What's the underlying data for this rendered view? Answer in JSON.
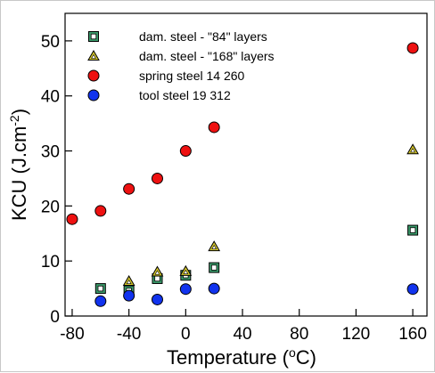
{
  "chart_data": {
    "type": "scatter",
    "xlabel": "Temperature (oC)",
    "xlabel_parts": {
      "pre": "Temperature (",
      "sup": "o",
      "post": "C)"
    },
    "ylabel": "KCU (J.cm-2)",
    "ylabel_parts": {
      "pre": "KCU (J.cm",
      "sup": "-2",
      "post": ")"
    },
    "xlim": [
      -85,
      170
    ],
    "ylim": [
      0,
      55
    ],
    "xticks": [
      -80,
      -40,
      0,
      40,
      80,
      120,
      160
    ],
    "xtick_labels": [
      "-80",
      "-40",
      "0",
      "40",
      "80",
      "120",
      "160"
    ],
    "yticks": [
      0,
      10,
      20,
      30,
      40,
      50
    ],
    "ytick_labels": [
      "0",
      "10",
      "20",
      "30",
      "40",
      "50"
    ],
    "grid": false,
    "legend_position": "top-left",
    "series": [
      {
        "name": "dam. steel - \"84\" layers",
        "marker": "square",
        "color": "#3a9a6a",
        "points": [
          [
            -60,
            5.0
          ],
          [
            -40,
            4.6
          ],
          [
            -20,
            6.8
          ],
          [
            0,
            7.4
          ],
          [
            20,
            8.8
          ],
          [
            160,
            15.6
          ]
        ]
      },
      {
        "name": "dam. steel - \"168\" layers",
        "marker": "triangle",
        "color": "#d4c62a",
        "points": [
          [
            -40,
            6.3
          ],
          [
            -20,
            8.0
          ],
          [
            0,
            8.1
          ],
          [
            20,
            12.6
          ],
          [
            160,
            30.2
          ]
        ]
      },
      {
        "name": "spring steel 14 260",
        "marker": "circle",
        "color": "#ee1111",
        "points": [
          [
            -80,
            17.6
          ],
          [
            -60,
            19.1
          ],
          [
            -40,
            23.1
          ],
          [
            -20,
            25.0
          ],
          [
            0,
            30.0
          ],
          [
            20,
            34.3
          ],
          [
            160,
            48.7
          ]
        ]
      },
      {
        "name": "tool steel 19 312",
        "marker": "circle",
        "color": "#1133ee",
        "points": [
          [
            -60,
            2.7
          ],
          [
            -40,
            3.7
          ],
          [
            -20,
            3.0
          ],
          [
            0,
            4.9
          ],
          [
            20,
            5.0
          ],
          [
            160,
            4.9
          ]
        ]
      }
    ]
  }
}
